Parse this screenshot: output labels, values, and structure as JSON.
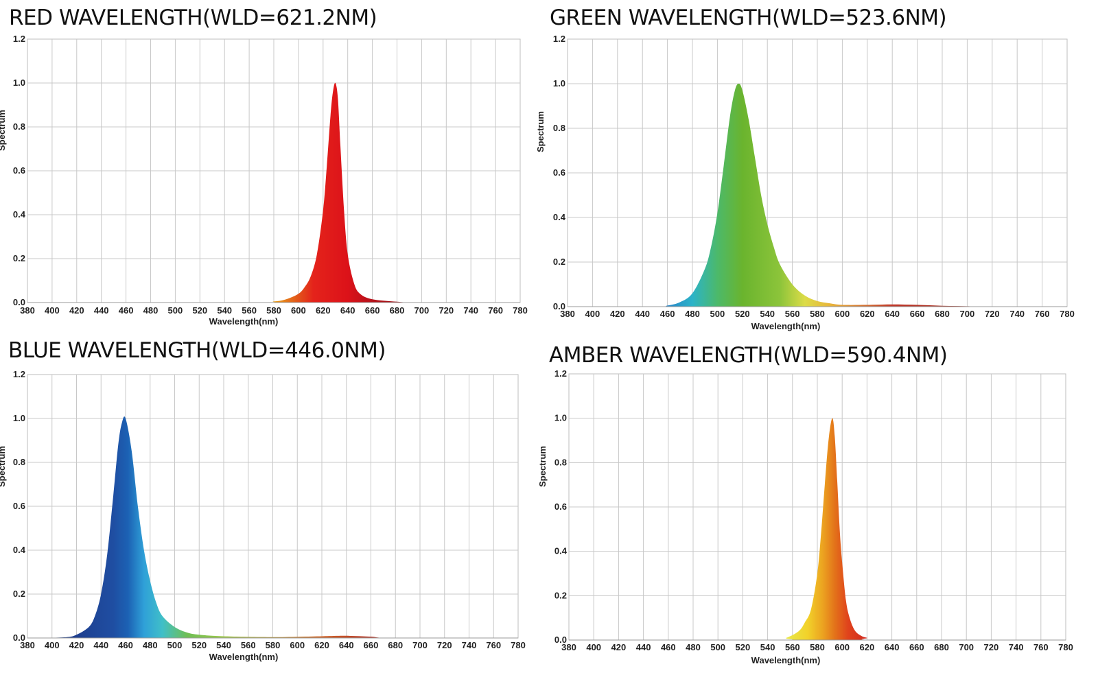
{
  "chart_data": [
    {
      "type": "area",
      "title": "RED WAVELENGTH(WLD=621.2NM)",
      "xlabel": "Wavelength(nm)",
      "ylabel": "Spectrum",
      "xlim": [
        380,
        780
      ],
      "ylim": [
        0,
        1.2
      ],
      "x_ticks": [
        380,
        400,
        420,
        440,
        460,
        480,
        500,
        520,
        540,
        560,
        580,
        600,
        620,
        640,
        660,
        680,
        700,
        720,
        740,
        760,
        780
      ],
      "y_ticks": [
        "0.0",
        "0.2",
        "0.4",
        "0.6",
        "0.8",
        "1.0",
        "1.2"
      ],
      "grid": true,
      "series": [
        {
          "x": [
            380,
            560,
            580,
            590,
            600,
            605,
            610,
            615,
            620,
            623,
            626,
            628,
            630,
            632,
            634,
            637,
            640,
            645,
            650,
            660,
            680,
            700,
            780
          ],
          "y": [
            0,
            0,
            0.005,
            0.015,
            0.04,
            0.07,
            0.12,
            0.22,
            0.42,
            0.62,
            0.85,
            0.96,
            1.0,
            0.93,
            0.72,
            0.42,
            0.22,
            0.09,
            0.04,
            0.015,
            0.004,
            0,
            0
          ],
          "gradient": [
            [
              580,
              "#e8a21c"
            ],
            [
              600,
              "#e2531a"
            ],
            [
              612,
              "#e4231b"
            ],
            [
              640,
              "#dc1219"
            ],
            [
              660,
              "#b5121a"
            ],
            [
              700,
              "#8c1012"
            ]
          ]
        }
      ]
    },
    {
      "type": "area",
      "title": "GREEN WAVELENGTH(WLD=523.6NM)",
      "xlabel": "Wavelength(nm)",
      "ylabel": "Spectrum",
      "xlim": [
        380,
        780
      ],
      "ylim": [
        0,
        1.2
      ],
      "x_ticks": [
        380,
        400,
        420,
        440,
        460,
        480,
        500,
        520,
        540,
        560,
        580,
        600,
        620,
        640,
        660,
        680,
        700,
        720,
        740,
        760,
        780
      ],
      "y_ticks": [
        "0.0",
        "0.2",
        "0.4",
        "0.6",
        "0.8",
        "1.0",
        "1.2"
      ],
      "grid": true,
      "series": [
        {
          "x": [
            380,
            450,
            460,
            470,
            480,
            490,
            495,
            500,
            505,
            510,
            514,
            517,
            520,
            525,
            530,
            535,
            540,
            545,
            550,
            560,
            570,
            580,
            590,
            600,
            620,
            640,
            660,
            680,
            700,
            720,
            780
          ],
          "y": [
            0,
            0,
            0.005,
            0.02,
            0.06,
            0.17,
            0.27,
            0.42,
            0.63,
            0.85,
            0.97,
            1.0,
            0.97,
            0.84,
            0.67,
            0.5,
            0.37,
            0.27,
            0.19,
            0.1,
            0.05,
            0.025,
            0.015,
            0.008,
            0.008,
            0.01,
            0.008,
            0.004,
            0.002,
            0,
            0
          ],
          "gradient": [
            [
              460,
              "#2a86c8"
            ],
            [
              480,
              "#2cb3c8"
            ],
            [
              500,
              "#4cb96a"
            ],
            [
              520,
              "#6ab42e"
            ],
            [
              550,
              "#8cc43a"
            ],
            [
              570,
              "#dcdc48"
            ],
            [
              590,
              "#e8b53a"
            ],
            [
              640,
              "#c0392b"
            ],
            [
              700,
              "#a03224"
            ]
          ]
        }
      ]
    },
    {
      "type": "area",
      "title": "BLUE WAVELENGTH(WLD=446.0NM)",
      "xlabel": "Wavelength(nm)",
      "ylabel": "Spectrum",
      "xlim": [
        380,
        780
      ],
      "ylim": [
        0,
        1.2
      ],
      "x_ticks": [
        380,
        400,
        420,
        440,
        460,
        480,
        500,
        520,
        540,
        560,
        580,
        600,
        620,
        640,
        660,
        680,
        700,
        720,
        740,
        760,
        780
      ],
      "y_ticks": [
        "0.0",
        "0.2",
        "0.4",
        "0.6",
        "0.8",
        "1.0",
        "1.2"
      ],
      "grid": true,
      "series": [
        {
          "x": [
            380,
            410,
            420,
            430,
            435,
            440,
            445,
            450,
            454,
            457,
            460,
            465,
            470,
            475,
            480,
            485,
            490,
            500,
            510,
            520,
            540,
            580,
            620,
            640,
            660,
            680,
            780
          ],
          "y": [
            0,
            0.003,
            0.015,
            0.05,
            0.1,
            0.2,
            0.38,
            0.65,
            0.88,
            0.98,
            1.0,
            0.85,
            0.6,
            0.4,
            0.26,
            0.16,
            0.1,
            0.05,
            0.025,
            0.015,
            0.008,
            0.004,
            0.008,
            0.01,
            0.006,
            0,
            0
          ],
          "gradient": [
            [
              420,
              "#1e3f8f"
            ],
            [
              450,
              "#1f4ea2"
            ],
            [
              462,
              "#1c62b4"
            ],
            [
              475,
              "#2fa0d8"
            ],
            [
              490,
              "#40bfc8"
            ],
            [
              510,
              "#6fbf55"
            ],
            [
              540,
              "#9dc84a"
            ],
            [
              620,
              "#d0652a"
            ],
            [
              660,
              "#b5382a"
            ]
          ]
        }
      ]
    },
    {
      "type": "area",
      "title": "AMBER WAVELENGTH(WLD=590.4NM)",
      "xlabel": "Wavelength(nm)",
      "ylabel": "Spectrum",
      "xlim": [
        380,
        780
      ],
      "ylim": [
        0,
        1.2
      ],
      "x_ticks": [
        380,
        400,
        420,
        440,
        460,
        480,
        500,
        520,
        540,
        560,
        580,
        600,
        620,
        640,
        660,
        680,
        700,
        720,
        740,
        760,
        780
      ],
      "y_ticks": [
        "0.0",
        "0.2",
        "0.4",
        "0.6",
        "0.8",
        "1.0",
        "1.2"
      ],
      "grid": true,
      "series": [
        {
          "x": [
            380,
            545,
            555,
            565,
            570,
            575,
            580,
            583,
            586,
            589,
            592,
            594,
            596,
            598,
            600,
            603,
            606,
            610,
            615,
            620,
            630,
            780
          ],
          "y": [
            0,
            0,
            0.01,
            0.04,
            0.08,
            0.14,
            0.3,
            0.48,
            0.7,
            0.9,
            1.0,
            0.92,
            0.72,
            0.5,
            0.35,
            0.18,
            0.1,
            0.045,
            0.02,
            0.01,
            0,
            0
          ],
          "gradient": [
            [
              555,
              "#e8e84a"
            ],
            [
              572,
              "#f2d22a"
            ],
            [
              585,
              "#eba020"
            ],
            [
              594,
              "#e3731a"
            ],
            [
              605,
              "#e0421c"
            ],
            [
              620,
              "#d02a20"
            ]
          ]
        }
      ]
    }
  ]
}
